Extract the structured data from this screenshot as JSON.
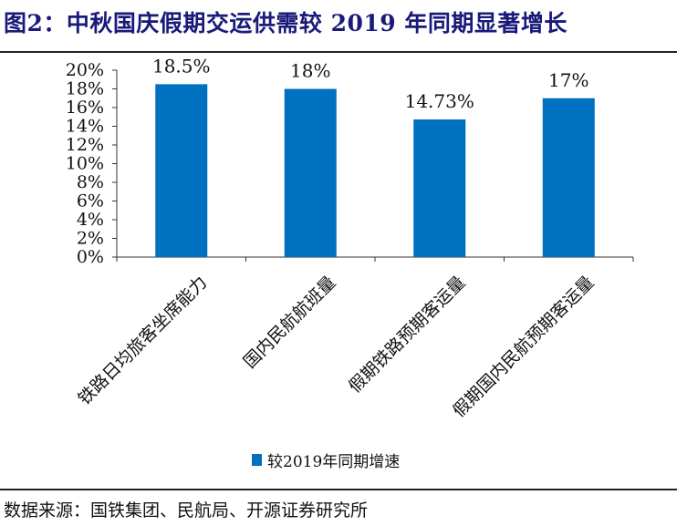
{
  "title": "图2：中秋国庆假期交运供需较 2019 年同期显著增长",
  "source": "数据来源：国铁集团、民航局、开源证券研究所",
  "chart_data": {
    "type": "bar",
    "title": "图2：中秋国庆假期交运供需较 2019 年同期显著增长",
    "categories": [
      "铁路日均旅客坐席能力",
      "国内民航航班量",
      "假期铁路预期客运量",
      "假期国内民航预期客运量"
    ],
    "series": [
      {
        "name": "较2019年同期增速",
        "values": [
          18.5,
          18,
          14.73,
          17
        ],
        "color": "#0070C0"
      }
    ],
    "data_labels": [
      "18.5%",
      "18%",
      "14.73%",
      "17%"
    ],
    "ylim": [
      0,
      20
    ],
    "yticks": [
      "0%",
      "2%",
      "4%",
      "6%",
      "8%",
      "10%",
      "12%",
      "14%",
      "16%",
      "18%",
      "20%"
    ],
    "xlabel": "",
    "ylabel": "",
    "grid": false,
    "legend": "bottom"
  }
}
